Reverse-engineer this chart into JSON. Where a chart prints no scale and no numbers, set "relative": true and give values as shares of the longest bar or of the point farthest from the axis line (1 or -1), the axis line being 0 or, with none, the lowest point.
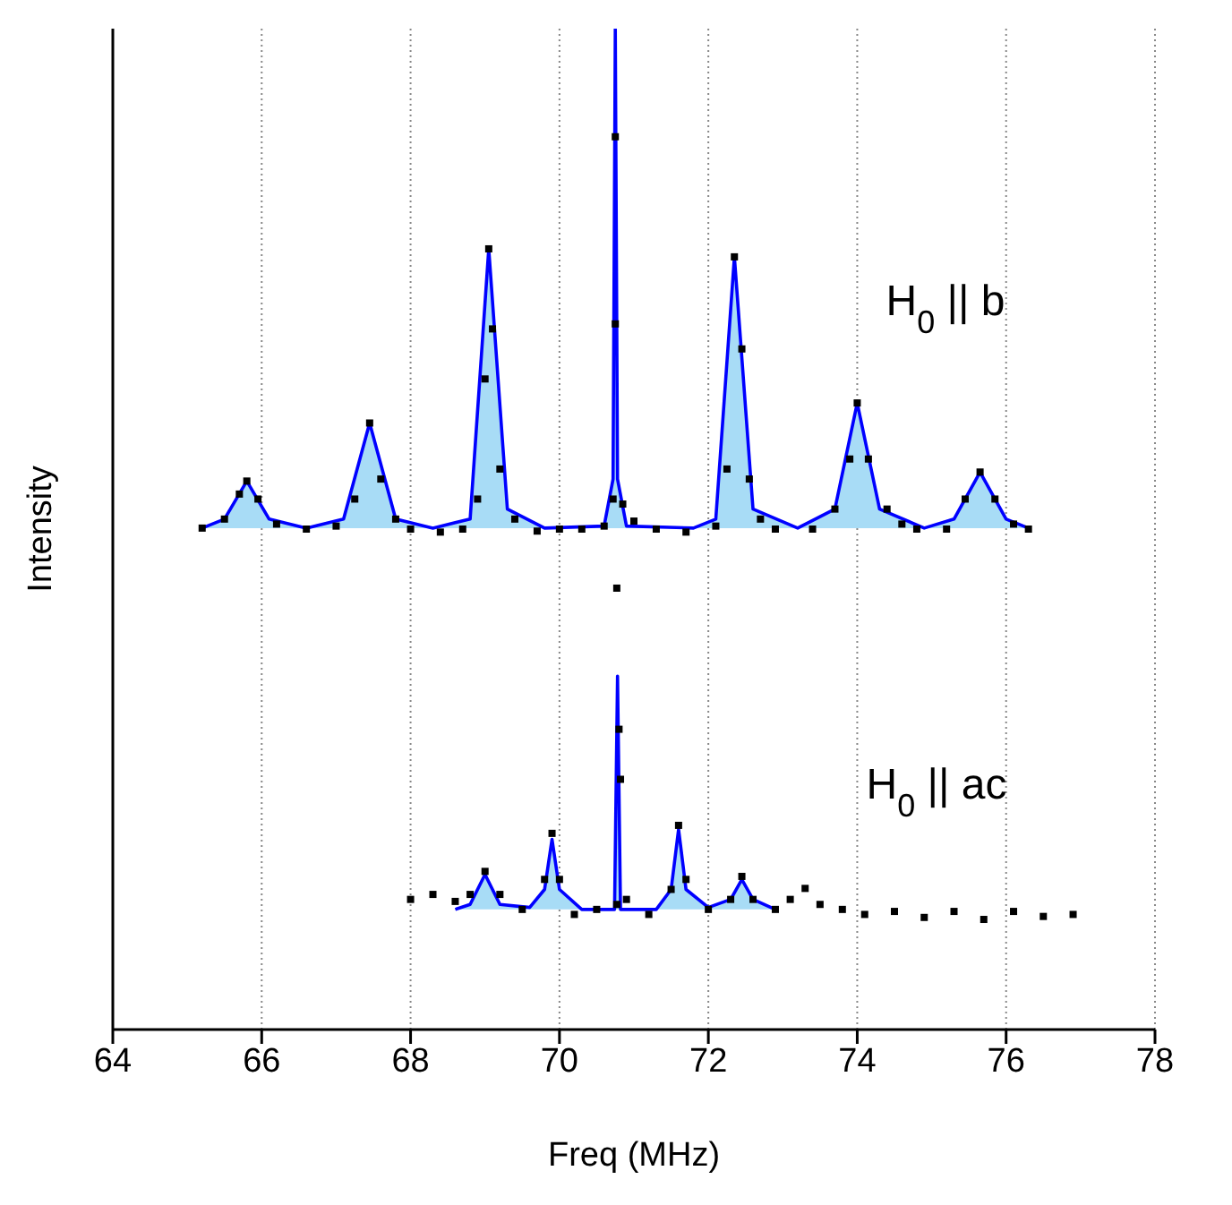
{
  "chart_data": {
    "type": "scatter",
    "xlabel": "Freq (MHz)",
    "ylabel": "Intensity",
    "relative": true,
    "xlim": [
      64,
      78
    ],
    "xticks": [
      64,
      66,
      68,
      70,
      72,
      74,
      76,
      78
    ],
    "grid": "x",
    "annotations": [
      "H$_{0}$ || b",
      "H$_{0}$ || ac"
    ],
    "series": [
      {
        "type": "area",
        "color": "#0000ff",
        "x": [
          65.2,
          65.5,
          65.8,
          66.1,
          66.6,
          67.1,
          67.45,
          67.8,
          68.3,
          68.8,
          69.05,
          69.3,
          69.8,
          70.6,
          70.72,
          70.75,
          70.78,
          70.9,
          71.8,
          72.1,
          72.35,
          72.6,
          73.2,
          73.7,
          74.0,
          74.3,
          74.9,
          75.3,
          75.65,
          76.0,
          76.3
        ],
        "values": [
          0.501,
          0.51,
          0.548,
          0.51,
          0.501,
          0.51,
          0.606,
          0.51,
          0.501,
          0.51,
          0.78,
          0.52,
          0.501,
          0.503,
          0.55,
          1,
          0.55,
          0.503,
          0.501,
          0.51,
          0.772,
          0.52,
          0.501,
          0.52,
          0.626,
          0.52,
          0.501,
          0.51,
          0.557,
          0.51,
          0.501
        ]
      },
      {
        "type": "area",
        "color": "#0000ff",
        "x": [
          68.6,
          68.8,
          69.0,
          69.2,
          69.6,
          69.8,
          69.9,
          70.0,
          70.3,
          70.74,
          70.78,
          70.82,
          71.3,
          71.5,
          71.6,
          71.7,
          72.0,
          72.3,
          72.45,
          72.6,
          72.9
        ],
        "values": [
          0.12,
          0.125,
          0.155,
          0.125,
          0.122,
          0.14,
          0.19,
          0.14,
          0.12,
          0.12,
          0.353,
          0.12,
          0.12,
          0.14,
          0.2,
          0.14,
          0.122,
          0.13,
          0.15,
          0.13,
          0.12
        ]
      },
      {
        "color": "#000000",
        "marker": "square",
        "x": [
          65.2,
          65.5,
          65.7,
          65.8,
          65.95,
          66.2,
          66.6,
          67.0,
          67.25,
          67.45,
          67.6,
          67.8,
          68.0,
          68.4,
          68.7,
          68.9,
          69.0,
          69.05,
          69.1,
          69.2,
          69.4,
          69.7,
          70.0,
          70.3,
          70.6,
          70.72,
          70.75,
          70.75,
          70.77,
          70.85,
          71.0,
          71.3,
          71.7,
          72.1,
          72.25,
          72.35,
          72.45,
          72.55,
          72.7,
          72.9,
          73.4,
          73.7,
          73.9,
          74.0,
          74.15,
          74.4,
          74.6,
          74.8,
          75.2,
          75.45,
          75.65,
          75.85,
          76.1,
          76.3
        ],
        "values": [
          0.501,
          0.51,
          0.535,
          0.548,
          0.53,
          0.505,
          0.5,
          0.503,
          0.53,
          0.606,
          0.55,
          0.51,
          0.5,
          0.497,
          0.5,
          0.53,
          0.65,
          0.78,
          0.7,
          0.56,
          0.51,
          0.498,
          0.5,
          0.5,
          0.503,
          0.53,
          0.892,
          0.705,
          0.441,
          0.525,
          0.508,
          0.5,
          0.497,
          0.503,
          0.56,
          0.772,
          0.68,
          0.55,
          0.51,
          0.5,
          0.5,
          0.52,
          0.57,
          0.626,
          0.57,
          0.52,
          0.505,
          0.5,
          0.5,
          0.53,
          0.557,
          0.53,
          0.505,
          0.5
        ]
      },
      {
        "color": "#000000",
        "marker": "square",
        "x": [
          68.0,
          68.3,
          68.6,
          68.8,
          69.0,
          69.2,
          69.5,
          69.8,
          69.9,
          70.0,
          70.2,
          70.5,
          70.77,
          70.8,
          70.82,
          70.9,
          71.2,
          71.5,
          71.6,
          71.7,
          72.0,
          72.3,
          72.45,
          72.6,
          72.9,
          73.1,
          73.3,
          73.5,
          73.8,
          74.1,
          74.5,
          74.9,
          75.3,
          75.7,
          76.1,
          76.5,
          76.9
        ],
        "values": [
          0.13,
          0.135,
          0.128,
          0.135,
          0.158,
          0.135,
          0.12,
          0.15,
          0.196,
          0.15,
          0.115,
          0.12,
          0.125,
          0.3,
          0.25,
          0.13,
          0.115,
          0.14,
          0.204,
          0.15,
          0.12,
          0.13,
          0.153,
          0.13,
          0.12,
          0.13,
          0.141,
          0.125,
          0.12,
          0.115,
          0.118,
          0.112,
          0.118,
          0.11,
          0.118,
          0.113,
          0.115
        ]
      }
    ]
  }
}
